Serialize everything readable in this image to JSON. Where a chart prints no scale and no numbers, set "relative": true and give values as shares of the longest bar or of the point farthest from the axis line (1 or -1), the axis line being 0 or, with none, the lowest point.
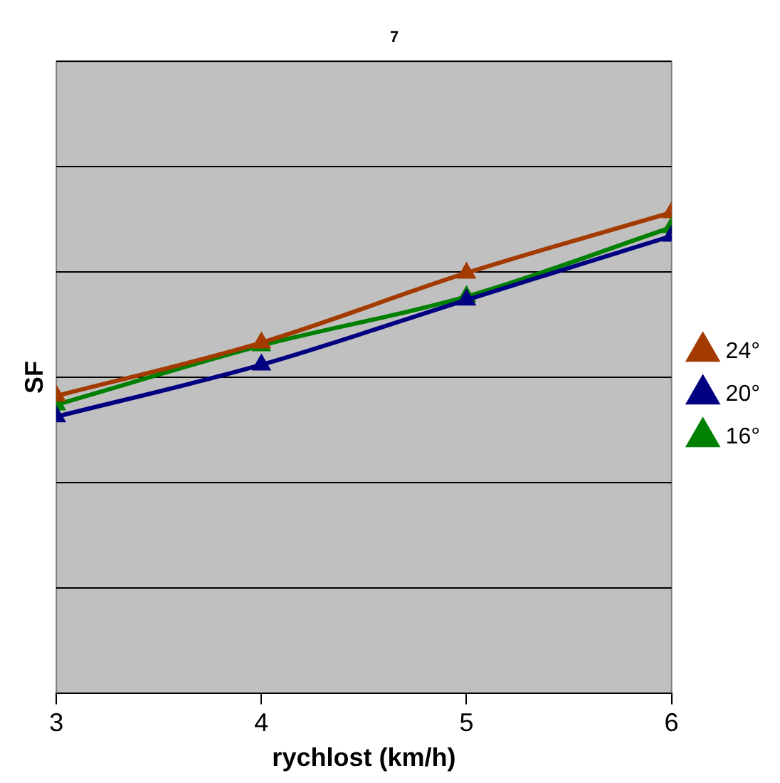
{
  "chart_data": {
    "type": "line",
    "title": "7",
    "xlabel": "rychlost (km/h)",
    "ylabel": "SF",
    "relative": true,
    "x": [
      3,
      4,
      5,
      6
    ],
    "xlim": [
      3,
      6
    ],
    "xticks": [
      3,
      4,
      5,
      6
    ],
    "grid": "y",
    "legend": "right",
    "marker": "triangle",
    "line_style": "solid",
    "series": [
      {
        "name": "24°",
        "color": "#a33a00",
        "values": [
          0.618,
          0.729,
          0.874,
          1
        ]
      },
      {
        "name": "20°",
        "color": "#000080",
        "values": [
          0.575,
          0.683,
          0.818,
          0.951
        ]
      },
      {
        "name": "16°",
        "color": "#008000",
        "values": [
          0.6,
          0.723,
          0.825,
          0.969
        ]
      }
    ]
  }
}
